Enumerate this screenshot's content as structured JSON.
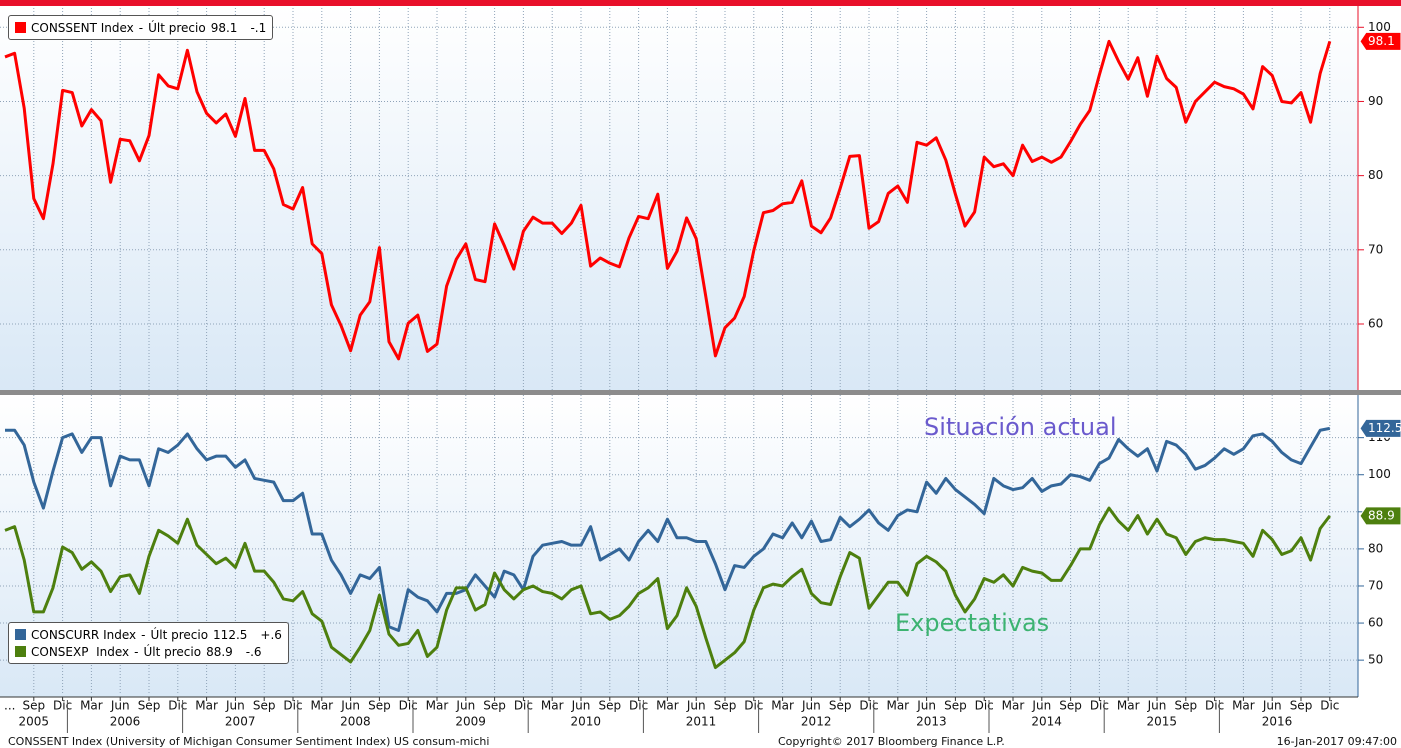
{
  "chart_data": [
    {
      "type": "line",
      "categories": [
        "2005-06",
        "2005-07",
        "2005-08",
        "2005-09",
        "2005-10",
        "2005-11",
        "2005-12",
        "2006-01",
        "2006-02",
        "2006-03",
        "2006-04",
        "2006-05",
        "2006-06",
        "2006-07",
        "2006-08",
        "2006-09",
        "2006-10",
        "2006-11",
        "2006-12",
        "2007-01",
        "2007-02",
        "2007-03",
        "2007-04",
        "2007-05",
        "2007-06",
        "2007-07",
        "2007-08",
        "2007-09",
        "2007-10",
        "2007-11",
        "2007-12",
        "2008-01",
        "2008-02",
        "2008-03",
        "2008-04",
        "2008-05",
        "2008-06",
        "2008-07",
        "2008-08",
        "2008-09",
        "2008-10",
        "2008-11",
        "2008-12",
        "2009-01",
        "2009-02",
        "2009-03",
        "2009-04",
        "2009-05",
        "2009-06",
        "2009-07",
        "2009-08",
        "2009-09",
        "2009-10",
        "2009-11",
        "2009-12",
        "2010-01",
        "2010-02",
        "2010-03",
        "2010-04",
        "2010-05",
        "2010-06",
        "2010-07",
        "2010-08",
        "2010-09",
        "2010-10",
        "2010-11",
        "2010-12",
        "2011-01",
        "2011-02",
        "2011-03",
        "2011-04",
        "2011-05",
        "2011-06",
        "2011-07",
        "2011-08",
        "2011-09",
        "2011-10",
        "2011-11",
        "2011-12",
        "2012-01",
        "2012-02",
        "2012-03",
        "2012-04",
        "2012-05",
        "2012-06",
        "2012-07",
        "2012-08",
        "2012-09",
        "2012-10",
        "2012-11",
        "2012-12",
        "2013-01",
        "2013-02",
        "2013-03",
        "2013-04",
        "2013-05",
        "2013-06",
        "2013-07",
        "2013-08",
        "2013-09",
        "2013-10",
        "2013-11",
        "2013-12",
        "2014-01",
        "2014-02",
        "2014-03",
        "2014-04",
        "2014-05",
        "2014-06",
        "2014-07",
        "2014-08",
        "2014-09",
        "2014-10",
        "2014-11",
        "2014-12",
        "2015-01",
        "2015-02",
        "2015-03",
        "2015-04",
        "2015-05",
        "2015-06",
        "2015-07",
        "2015-08",
        "2015-09",
        "2015-10",
        "2015-11",
        "2015-12",
        "2016-01",
        "2016-02",
        "2016-03",
        "2016-04",
        "2016-05",
        "2016-06",
        "2016-07",
        "2016-08",
        "2016-09",
        "2016-10",
        "2016-11",
        "2016-12"
      ],
      "xticks": [
        {
          "value": "2005-09",
          "label": "Sep"
        },
        {
          "value": "2005-12",
          "label": "Dic"
        },
        {
          "value": "2006-03",
          "label": "Mar"
        },
        {
          "value": "2006-06",
          "label": "Jun"
        },
        {
          "value": "2006-09",
          "label": "Sep"
        },
        {
          "value": "2006-12",
          "label": "Dic"
        },
        {
          "value": "2007-03",
          "label": "Mar"
        },
        {
          "value": "2007-06",
          "label": "Jun"
        },
        {
          "value": "2007-09",
          "label": "Sep"
        },
        {
          "value": "2007-12",
          "label": "Dic"
        },
        {
          "value": "2008-03",
          "label": "Mar"
        },
        {
          "value": "2008-06",
          "label": "Jun"
        },
        {
          "value": "2008-09",
          "label": "Sep"
        },
        {
          "value": "2008-12",
          "label": "Dic"
        },
        {
          "value": "2009-03",
          "label": "Mar"
        },
        {
          "value": "2009-06",
          "label": "Jun"
        },
        {
          "value": "2009-09",
          "label": "Sep"
        },
        {
          "value": "2009-12",
          "label": "Dic"
        },
        {
          "value": "2010-03",
          "label": "Mar"
        },
        {
          "value": "2010-06",
          "label": "Jun"
        },
        {
          "value": "2010-09",
          "label": "Sep"
        },
        {
          "value": "2010-12",
          "label": "Dic"
        },
        {
          "value": "2011-03",
          "label": "Mar"
        },
        {
          "value": "2011-06",
          "label": "Jun"
        },
        {
          "value": "2011-09",
          "label": "Sep"
        },
        {
          "value": "2011-12",
          "label": "Dic"
        },
        {
          "value": "2012-03",
          "label": "Mar"
        },
        {
          "value": "2012-06",
          "label": "Jun"
        },
        {
          "value": "2012-09",
          "label": "Sep"
        },
        {
          "value": "2012-12",
          "label": "Dic"
        },
        {
          "value": "2013-03",
          "label": "Mar"
        },
        {
          "value": "2013-06",
          "label": "Jun"
        },
        {
          "value": "2013-09",
          "label": "Sep"
        },
        {
          "value": "2013-12",
          "label": "Dic"
        },
        {
          "value": "2014-03",
          "label": "Mar"
        },
        {
          "value": "2014-06",
          "label": "Jun"
        },
        {
          "value": "2014-09",
          "label": "Sep"
        },
        {
          "value": "2014-12",
          "label": "Dic"
        },
        {
          "value": "2015-03",
          "label": "Mar"
        },
        {
          "value": "2015-06",
          "label": "Jun"
        },
        {
          "value": "2015-09",
          "label": "Sep"
        },
        {
          "value": "2015-12",
          "label": "Dic"
        },
        {
          "value": "2016-03",
          "label": "Mar"
        },
        {
          "value": "2016-06",
          "label": "Jun"
        },
        {
          "value": "2016-09",
          "label": "Sep"
        },
        {
          "value": "2016-12",
          "label": "Dic"
        }
      ],
      "x_axis_prefix": "...",
      "years": [
        "2005",
        "2006",
        "2007",
        "2008",
        "2009",
        "2010",
        "2011",
        "2012",
        "2013",
        "2014",
        "2015",
        "2016"
      ],
      "ylim": [
        51.1,
        102.6
      ],
      "yticks": [
        60,
        70,
        80,
        90,
        100
      ],
      "grid": true,
      "legend_label": "Últ precio",
      "legend_separator": "-",
      "series": [
        {
          "name": "CONSSENT Index",
          "color": "#ff0000",
          "change": {
            "value": -0.1,
            "label": "-.1"
          },
          "values": [
            96.0,
            96.5,
            89.1,
            76.9,
            74.2,
            81.6,
            91.5,
            91.2,
            86.7,
            88.9,
            87.4,
            79.1,
            84.9,
            84.7,
            82.0,
            85.4,
            93.6,
            92.1,
            91.7,
            96.9,
            91.3,
            88.4,
            87.1,
            88.3,
            85.3,
            90.4,
            83.4,
            83.4,
            80.9,
            76.1,
            75.5,
            78.4,
            70.8,
            69.5,
            62.6,
            59.8,
            56.4,
            61.2,
            63.0,
            70.3,
            57.6,
            55.3,
            60.1,
            61.2,
            56.3,
            57.3,
            65.1,
            68.7,
            70.8,
            66.0,
            65.7,
            73.5,
            70.6,
            67.4,
            72.5,
            74.4,
            73.6,
            73.6,
            72.2,
            73.6,
            76.0,
            67.8,
            68.9,
            68.2,
            67.7,
            71.6,
            74.5,
            74.2,
            77.5,
            67.5,
            69.8,
            74.3,
            71.5,
            63.7,
            55.7,
            59.5,
            60.8,
            63.7,
            69.9,
            75.0,
            75.3,
            76.2,
            76.4,
            79.3,
            73.2,
            72.3,
            74.3,
            78.3,
            82.6,
            82.7,
            72.9,
            73.8,
            77.6,
            78.6,
            76.4,
            84.5,
            84.1,
            85.1,
            82.1,
            77.5,
            73.2,
            75.1,
            82.5,
            81.2,
            81.6,
            80.0,
            84.1,
            81.9,
            82.5,
            81.8,
            82.5,
            84.6,
            86.9,
            88.8,
            93.6,
            98.1,
            95.4,
            93.0,
            95.9,
            90.7,
            96.1,
            93.1,
            91.9,
            87.2,
            90.0,
            91.3,
            92.6,
            92.0,
            91.7,
            91.0,
            89.0,
            94.7,
            93.5,
            90.0,
            89.8,
            91.2,
            87.2,
            93.8,
            98.1
          ]
        }
      ],
      "source": "CONSSENT Index (University of Michigan Consumer Sentiment Index) US consum-michi",
      "copyright": "Copyright© 2017 Bloomberg Finance L.P.",
      "timestamp": "16-Jan-2017 09:47:00"
    },
    {
      "type": "line",
      "ylim": [
        40.6,
        121.5
      ],
      "yticks": [
        50,
        60,
        70,
        80,
        90,
        100,
        110
      ],
      "grid": true,
      "legend_label": "Últ precio",
      "legend_separator": "-",
      "annotations": [
        {
          "text": "Situación actual",
          "color": "#6a5acd"
        },
        {
          "text": "Expectativas",
          "color": "#3cb371"
        }
      ],
      "series": [
        {
          "name": "CONSCURR Index",
          "color": "#336699",
          "change": {
            "value": 0.6,
            "label": "+.6"
          },
          "values": [
            112,
            112,
            108,
            98,
            91,
            101,
            110,
            111,
            106,
            110,
            110,
            97,
            105,
            104,
            104,
            97,
            107,
            106,
            108,
            111,
            107,
            104,
            105,
            105,
            102,
            104,
            99,
            98.5,
            98,
            93,
            93,
            95,
            84,
            84,
            77,
            73,
            68,
            73,
            72,
            75,
            59,
            58,
            69,
            67,
            66,
            63,
            68,
            68,
            69,
            73,
            70,
            67,
            74,
            73,
            69,
            78,
            81,
            81.5,
            82,
            81,
            81,
            86,
            77,
            78.5,
            80,
            77,
            82,
            85,
            82,
            88,
            83,
            83,
            82,
            82,
            76,
            69,
            75.5,
            75,
            78,
            80,
            84,
            83,
            87,
            83,
            87.5,
            82,
            82.5,
            88.5,
            86,
            88,
            90.5,
            87,
            85,
            89,
            90.5,
            90,
            98,
            95,
            99,
            96,
            94,
            92,
            89.5,
            99,
            97,
            96,
            96.5,
            99,
            95.5,
            97,
            97.5,
            100,
            99.5,
            98.5,
            103,
            104.5,
            109.5,
            107,
            105,
            107,
            101,
            109,
            108,
            105.5,
            101.5,
            102.5,
            104.5,
            107,
            105.5,
            107,
            110.5,
            111,
            109,
            106,
            104,
            103,
            107.5,
            112,
            112.5
          ]
        },
        {
          "name": "CONSEXP  Index",
          "color": "#4d7f0e",
          "change": {
            "value": -0.6,
            "label": "-.6"
          },
          "values": [
            85,
            86,
            77,
            63,
            63,
            69.5,
            80.5,
            79,
            74.5,
            76.5,
            74,
            68.5,
            72.5,
            73,
            68,
            78,
            85,
            83.5,
            81.5,
            88,
            81,
            78.5,
            76,
            77.5,
            75,
            81.5,
            74,
            74,
            71,
            66.5,
            66,
            68.5,
            62.5,
            60.5,
            53.5,
            51.5,
            49.5,
            53.5,
            58,
            67.5,
            57,
            54,
            54.5,
            58,
            51,
            53.5,
            63.5,
            69.5,
            69.5,
            63.5,
            65,
            73.5,
            69,
            66.5,
            69,
            70,
            68.5,
            68,
            66.5,
            69,
            70,
            62.5,
            63,
            61,
            62,
            64.5,
            68,
            69.5,
            72,
            58.5,
            62,
            69.5,
            64.5,
            56,
            48,
            50,
            52,
            55,
            63.5,
            69.5,
            70.5,
            70,
            72.5,
            74.5,
            68,
            65.5,
            65,
            72.5,
            79,
            77.5,
            64,
            67.5,
            71,
            71,
            67.5,
            76,
            78,
            76.5,
            74,
            67.5,
            63,
            66.5,
            72,
            71,
            73,
            70,
            75,
            74,
            73.5,
            71.5,
            71.5,
            75.5,
            80,
            80,
            86.5,
            91,
            87.5,
            85,
            89,
            84,
            88,
            84,
            83,
            78.5,
            82,
            83,
            82.5,
            82.5,
            82,
            81.5,
            78,
            85,
            82.5,
            78.5,
            79.5,
            83,
            77,
            85.5,
            88.9
          ]
        }
      ]
    }
  ]
}
